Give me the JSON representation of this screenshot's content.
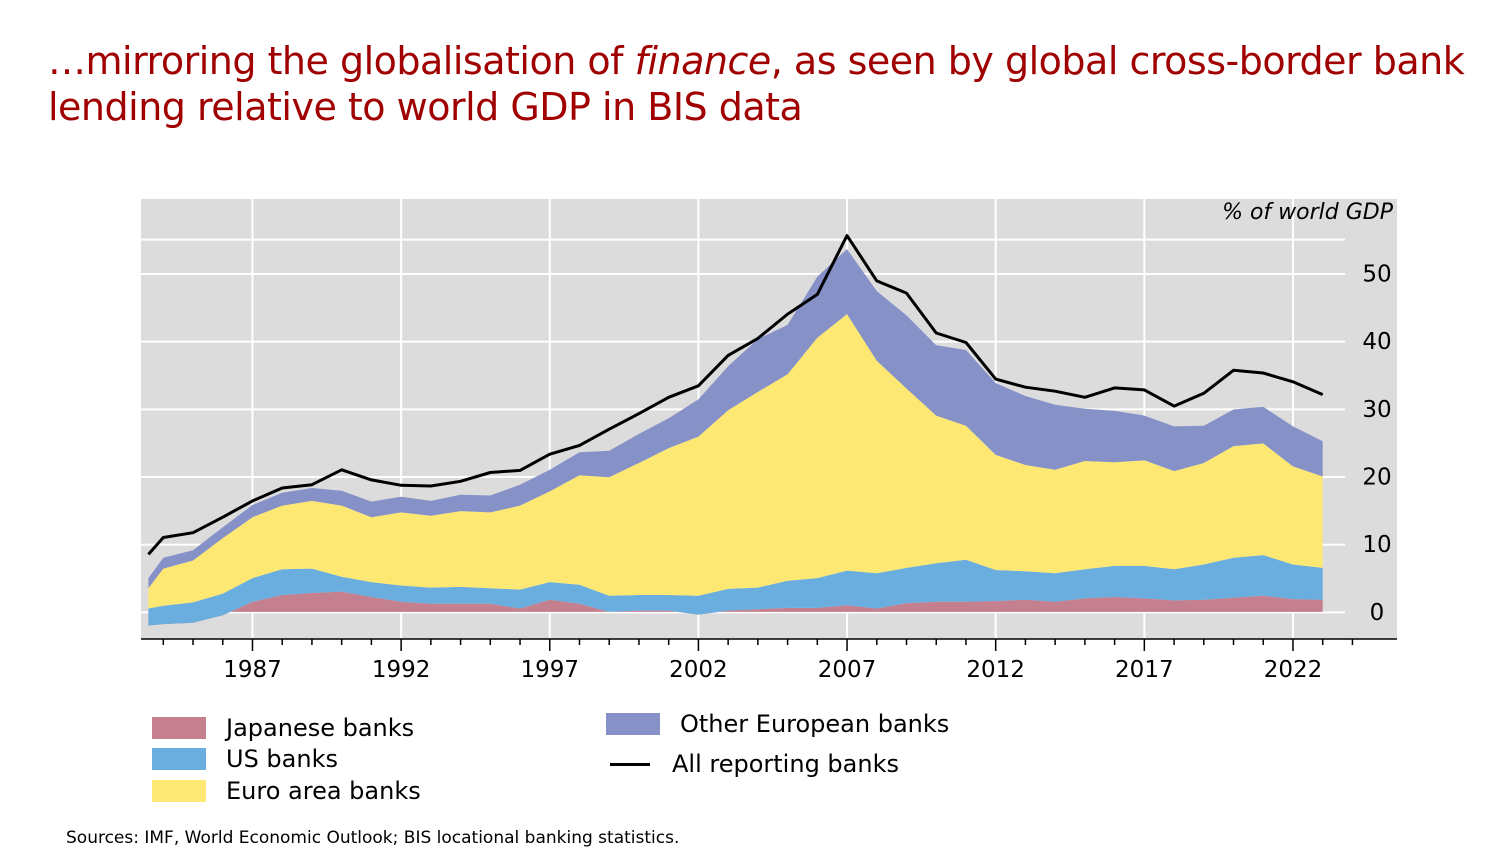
{
  "title": {
    "prefix": "…mirroring the globalisation of ",
    "emphasis": "finance",
    "suffix": ", as seen by global cross-border bank lending relative to world GDP in BIS data"
  },
  "chart_data": {
    "type": "area",
    "unit_label": "% of world GDP",
    "x_ticks": [
      1987,
      1992,
      1997,
      2002,
      2007,
      2012,
      2017,
      2022
    ],
    "y_ticks": [
      0,
      10,
      20,
      30,
      40,
      50
    ],
    "xlim": [
      1983.25,
      2023.75
    ],
    "ylim": [
      -4,
      61
    ],
    "grid": true,
    "stacked_order": [
      "Japanese banks",
      "US banks",
      "Euro area banks",
      "Other European banks"
    ],
    "x": [
      1983.5,
      1984,
      1985,
      1986,
      1987,
      1988,
      1989,
      1990,
      1991,
      1992,
      1993,
      1994,
      1995,
      1996,
      1997,
      1998,
      1999,
      2000,
      2001,
      2002,
      2003,
      2004,
      2005,
      2006,
      2007,
      2008,
      2009,
      2010,
      2011,
      2012,
      2013,
      2014,
      2015,
      2016,
      2017,
      2018,
      2019,
      2020,
      2021,
      2022,
      2023
    ],
    "series": [
      {
        "name": "Japanese banks",
        "color": "#c4808f",
        "values": [
          -2,
          -1.8,
          -1.6,
          -0.5,
          1.5,
          2.5,
          2.8,
          3,
          2.2,
          1.5,
          1.2,
          1.2,
          1.2,
          0.5,
          1.8,
          1.2,
          0,
          0.2,
          0.2,
          -0.4,
          0.2,
          0.4,
          0.6,
          0.6,
          1,
          0.5,
          1.3,
          1.5,
          1.5,
          1.6,
          1.8,
          1.5,
          2,
          2.2,
          2,
          1.7,
          1.8,
          2.1,
          2.4,
          1.9,
          1.8
        ]
      },
      {
        "name": "US banks",
        "color": "#6aaee0",
        "values": [
          2.5,
          2.7,
          3,
          3.2,
          3.5,
          3.8,
          3.6,
          2.2,
          2.2,
          2.4,
          2.4,
          2.5,
          2.3,
          2.8,
          2.6,
          2.8,
          2.4,
          2.3,
          2.3,
          2.8,
          3.2,
          3.2,
          4,
          4.4,
          5.1,
          5.2,
          5.2,
          5.7,
          6.2,
          4.6,
          4.2,
          4.2,
          4.3,
          4.6,
          4.8,
          4.6,
          5.2,
          5.9,
          6,
          5.1,
          4.7
        ]
      },
      {
        "name": "Euro area banks",
        "color": "#fde874",
        "values": [
          3,
          5.5,
          6.2,
          8.2,
          9,
          9.4,
          10,
          10.5,
          9.6,
          10.8,
          10.6,
          11.2,
          11.2,
          12.4,
          13.4,
          16.2,
          17.5,
          19.5,
          21.7,
          23.5,
          26.4,
          28.9,
          30.5,
          35.5,
          37.9,
          31.4,
          26.5,
          21.8,
          19.8,
          17,
          15.7,
          15.3,
          16,
          15.3,
          15.6,
          14.5,
          15,
          16.5,
          16.5,
          14.5,
          13.5
        ]
      },
      {
        "name": "Other European banks",
        "color": "#8691c8",
        "values": [
          1.5,
          1.6,
          1.5,
          1.6,
          1.8,
          1.9,
          1.9,
          2.2,
          2.3,
          2.3,
          2.2,
          2.4,
          2.5,
          3.1,
          3.2,
          3.4,
          3.9,
          4.3,
          4.4,
          5.5,
          6.5,
          7.8,
          7.3,
          9,
          9.6,
          10.3,
          10.8,
          10.4,
          11.2,
          10.6,
          10.2,
          9.6,
          7.7,
          7.6,
          6.6,
          6.6,
          5.5,
          5.4,
          5.4,
          5.9,
          5.2
        ]
      }
    ],
    "total": {
      "name": "All reporting banks",
      "color": "#000000",
      "values": [
        8.5,
        11,
        11.7,
        14,
        16.4,
        18.3,
        18.8,
        21,
        19.5,
        18.7,
        18.6,
        19.3,
        20.6,
        20.9,
        23.3,
        24.6,
        27,
        29.3,
        31.7,
        33.4,
        37.9,
        40.4,
        44,
        46.9,
        55.6,
        48.9,
        47.1,
        41.2,
        39.8,
        34.4,
        33.2,
        32.6,
        31.7,
        33.1,
        32.8,
        30.4,
        32.3,
        35.7,
        35.3,
        34,
        32.1
      ]
    }
  },
  "legend": {
    "japanese": "Japanese banks",
    "us": "US banks",
    "euro": "Euro area banks",
    "other": "Other European banks",
    "all": "All reporting banks"
  },
  "colors": {
    "title": "#a00000",
    "plot_background": "#dcdcdc",
    "grid": "#ffffff"
  },
  "sources": "Sources: IMF, World Economic Outlook; BIS locational banking statistics."
}
